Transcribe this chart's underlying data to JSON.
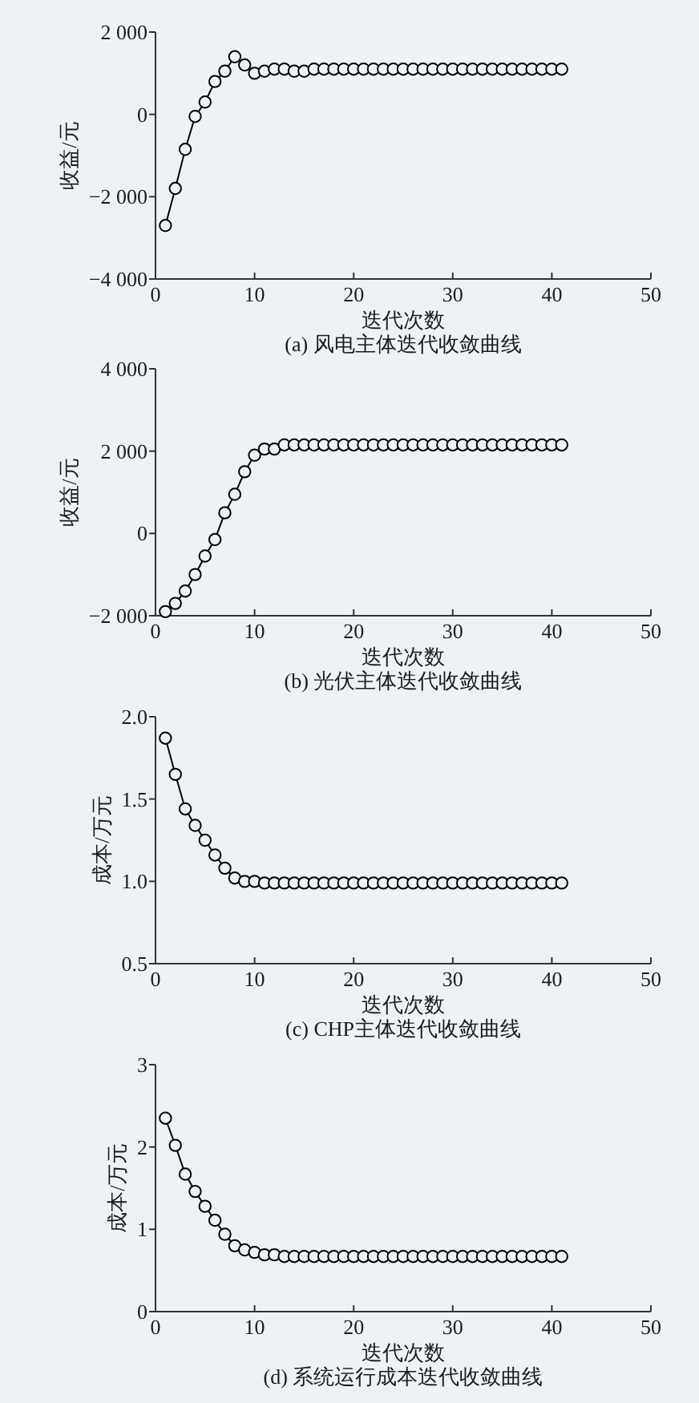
{
  "chart_data": [
    {
      "type": "line",
      "title": "(a) 风电主体迭代收敛曲线",
      "xlabel": "迭代次数",
      "ylabel": "收益/元",
      "marker": "circle",
      "line_style": "solid",
      "x": [
        1,
        2,
        3,
        4,
        5,
        6,
        7,
        8,
        9,
        10,
        11,
        12,
        13,
        14,
        15,
        16,
        17,
        18,
        19,
        20,
        21,
        22,
        23,
        24,
        25,
        26,
        27,
        28,
        29,
        30,
        31,
        32,
        33,
        34,
        35,
        36,
        37,
        38,
        39,
        40,
        41
      ],
      "series": [
        {
          "color": "#000000",
          "values": [
            -2700,
            -1800,
            -850,
            -50,
            300,
            800,
            1050,
            1400,
            1200,
            1000,
            1050,
            1100,
            1100,
            1050,
            1050,
            1100,
            1100,
            1100,
            1100,
            1100,
            1100,
            1100,
            1100,
            1100,
            1100,
            1100,
            1100,
            1100,
            1100,
            1100,
            1100,
            1100,
            1100,
            1100,
            1100,
            1100,
            1100,
            1100,
            1100,
            1100,
            1100
          ]
        }
      ],
      "xlim": [
        0,
        50
      ],
      "xticks": [
        0,
        10,
        20,
        30,
        40,
        50
      ],
      "ylim": [
        -4000,
        2000
      ],
      "yticks": [
        {
          "value": -4000,
          "label": "−4 000"
        },
        {
          "value": -2000,
          "label": "−2 000"
        },
        0,
        {
          "value": 2000,
          "label": "2 000"
        }
      ]
    },
    {
      "type": "line",
      "title": "(b) 光伏主体迭代收敛曲线",
      "xlabel": "迭代次数",
      "ylabel": "收益/元",
      "marker": "circle",
      "line_style": "solid",
      "x": [
        1,
        2,
        3,
        4,
        5,
        6,
        7,
        8,
        9,
        10,
        11,
        12,
        13,
        14,
        15,
        16,
        17,
        18,
        19,
        20,
        21,
        22,
        23,
        24,
        25,
        26,
        27,
        28,
        29,
        30,
        31,
        32,
        33,
        34,
        35,
        36,
        37,
        38,
        39,
        40,
        41
      ],
      "series": [
        {
          "color": "#000000",
          "values": [
            -1900,
            -1700,
            -1400,
            -1000,
            -550,
            -150,
            500,
            950,
            1500,
            1900,
            2050,
            2050,
            2150,
            2150,
            2150,
            2150,
            2150,
            2150,
            2150,
            2150,
            2150,
            2150,
            2150,
            2150,
            2150,
            2150,
            2150,
            2150,
            2150,
            2150,
            2150,
            2150,
            2150,
            2150,
            2150,
            2150,
            2150,
            2150,
            2150,
            2150,
            2150
          ]
        }
      ],
      "xlim": [
        0,
        50
      ],
      "xticks": [
        0,
        10,
        20,
        30,
        40,
        50
      ],
      "ylim": [
        -2000,
        4000
      ],
      "yticks": [
        {
          "value": -2000,
          "label": "−2 000"
        },
        0,
        {
          "value": 2000,
          "label": "2 000"
        },
        {
          "value": 4000,
          "label": "4 000"
        }
      ]
    },
    {
      "type": "line",
      "title": "(c) CHP主体迭代收敛曲线",
      "xlabel": "迭代次数",
      "ylabel": "成本/万元",
      "marker": "circle",
      "line_style": "solid",
      "x": [
        1,
        2,
        3,
        4,
        5,
        6,
        7,
        8,
        9,
        10,
        11,
        12,
        13,
        14,
        15,
        16,
        17,
        18,
        19,
        20,
        21,
        22,
        23,
        24,
        25,
        26,
        27,
        28,
        29,
        30,
        31,
        32,
        33,
        34,
        35,
        36,
        37,
        38,
        39,
        40,
        41
      ],
      "series": [
        {
          "color": "#000000",
          "values": [
            1.87,
            1.65,
            1.44,
            1.34,
            1.25,
            1.16,
            1.08,
            1.02,
            1.0,
            1.0,
            0.99,
            0.99,
            0.99,
            0.99,
            0.99,
            0.99,
            0.99,
            0.99,
            0.99,
            0.99,
            0.99,
            0.99,
            0.99,
            0.99,
            0.99,
            0.99,
            0.99,
            0.99,
            0.99,
            0.99,
            0.99,
            0.99,
            0.99,
            0.99,
            0.99,
            0.99,
            0.99,
            0.99,
            0.99,
            0.99,
            0.99
          ]
        }
      ],
      "xlim": [
        0,
        50
      ],
      "xticks": [
        0,
        10,
        20,
        30,
        40,
        50
      ],
      "ylim": [
        0.5,
        2
      ],
      "yticks": [
        0.5,
        {
          "value": 1,
          "label": "1.0"
        },
        1.5,
        {
          "value": 2,
          "label": "2.0"
        }
      ]
    },
    {
      "type": "line",
      "title": "(d) 系统运行成本迭代收敛曲线",
      "xlabel": "迭代次数",
      "ylabel": "成本/万元",
      "marker": "circle",
      "line_style": "solid",
      "x": [
        1,
        2,
        3,
        4,
        5,
        6,
        7,
        8,
        9,
        10,
        11,
        12,
        13,
        14,
        15,
        16,
        17,
        18,
        19,
        20,
        21,
        22,
        23,
        24,
        25,
        26,
        27,
        28,
        29,
        30,
        31,
        32,
        33,
        34,
        35,
        36,
        37,
        38,
        39,
        40,
        41
      ],
      "series": [
        {
          "color": "#000000",
          "values": [
            2.35,
            2.02,
            1.67,
            1.46,
            1.28,
            1.11,
            0.94,
            0.8,
            0.75,
            0.72,
            0.69,
            0.69,
            0.67,
            0.67,
            0.67,
            0.67,
            0.67,
            0.67,
            0.67,
            0.67,
            0.67,
            0.67,
            0.67,
            0.67,
            0.67,
            0.67,
            0.67,
            0.67,
            0.67,
            0.67,
            0.67,
            0.67,
            0.67,
            0.67,
            0.67,
            0.67,
            0.67,
            0.67,
            0.67,
            0.67,
            0.67
          ]
        }
      ],
      "xlim": [
        0,
        50
      ],
      "xticks": [
        0,
        10,
        20,
        30,
        40,
        50
      ],
      "ylim": [
        0,
        3
      ],
      "yticks": [
        0,
        1,
        2,
        3
      ]
    }
  ]
}
